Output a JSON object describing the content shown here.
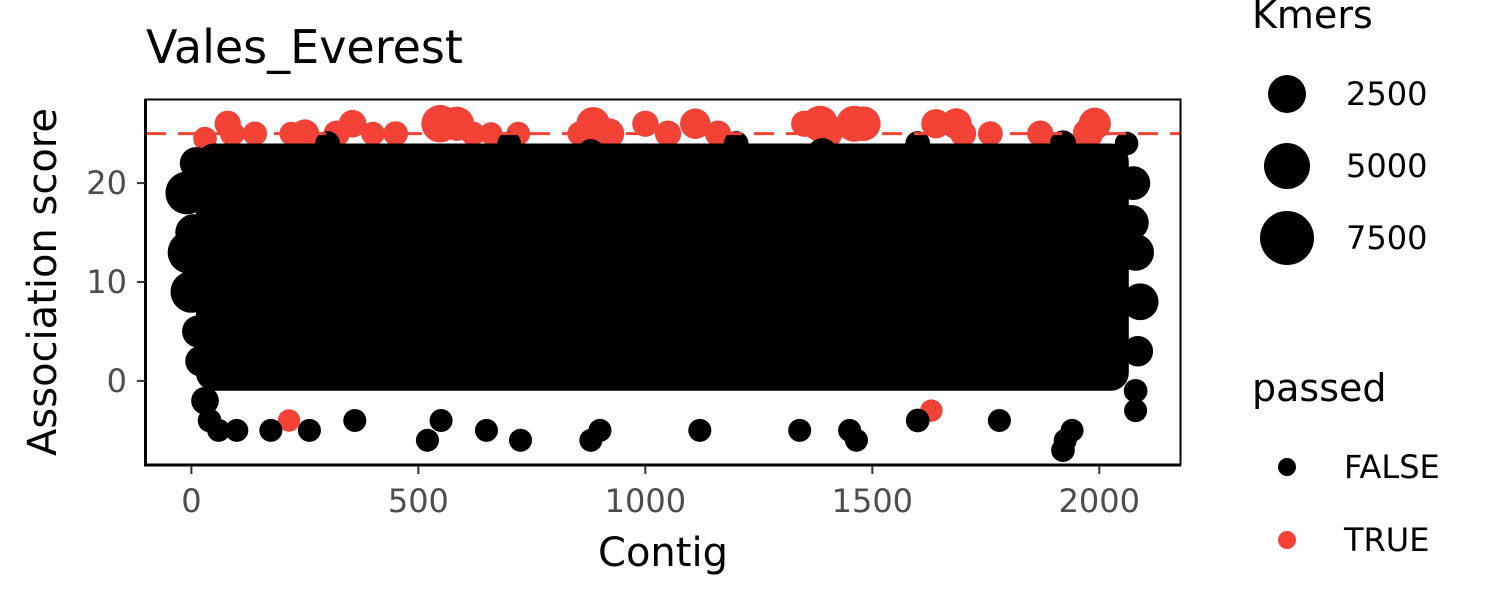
{
  "chart_data": {
    "type": "scatter",
    "title": "Vales_Everest",
    "xlabel": "Contig",
    "ylabel": "Association score",
    "xlim": [
      -100,
      2180
    ],
    "ylim": [
      -8.5,
      28.5
    ],
    "x_ticks": [
      0,
      500,
      1000,
      1500,
      2000
    ],
    "y_ticks": [
      0,
      10,
      20
    ],
    "threshold": 25,
    "threshold_color": "#F8766D",
    "colors": {
      "FALSE": "#000000",
      "TRUE": "#F44336"
    },
    "grid": false,
    "legend_position": "right",
    "legend": {
      "size": {
        "title": "Kmers",
        "entries": [
          {
            "label": "2500",
            "value": 2500
          },
          {
            "label": "5000",
            "value": 5000
          },
          {
            "label": "7500",
            "value": 7500
          }
        ]
      },
      "color": {
        "title": "passed",
        "entries": [
          {
            "label": "FALSE",
            "color": "#000000"
          },
          {
            "label": "TRUE",
            "color": "#F44336"
          }
        ]
      }
    },
    "series": [
      {
        "name": "TRUE",
        "points": [
          [
            80,
            26,
            1500
          ],
          [
            90,
            25,
            1200
          ],
          [
            30,
            24.5,
            1000
          ],
          [
            140,
            25,
            1100
          ],
          [
            220,
            25,
            1000
          ],
          [
            250,
            25,
            2000
          ],
          [
            320,
            25,
            1500
          ],
          [
            355,
            26,
            1800
          ],
          [
            400,
            25,
            1000
          ],
          [
            450,
            25,
            1200
          ],
          [
            548,
            26,
            4800
          ],
          [
            585,
            26,
            3600
          ],
          [
            620,
            25,
            1100
          ],
          [
            660,
            25,
            900
          ],
          [
            720,
            25,
            1000
          ],
          [
            855,
            25,
            1100
          ],
          [
            885,
            26,
            3400
          ],
          [
            920,
            25,
            2500
          ],
          [
            1000,
            26,
            1500
          ],
          [
            1050,
            25,
            1500
          ],
          [
            1110,
            26,
            2500
          ],
          [
            1160,
            25,
            1500
          ],
          [
            1350,
            26,
            1500
          ],
          [
            1385,
            26,
            4200
          ],
          [
            1400,
            25,
            2500
          ],
          [
            1460,
            26,
            4200
          ],
          [
            1480,
            26,
            3800
          ],
          [
            1640,
            26,
            2200
          ],
          [
            1685,
            26,
            2600
          ],
          [
            1700,
            25,
            1500
          ],
          [
            1760,
            25,
            1200
          ],
          [
            1870,
            25,
            1500
          ],
          [
            1975,
            25,
            2500
          ],
          [
            1990,
            26,
            3000
          ],
          [
            215,
            -4,
            800
          ],
          [
            1630,
            -3,
            800
          ]
        ]
      },
      {
        "name": "FALSE",
        "points": [
          [
            -10,
            19,
            7000
          ],
          [
            -5,
            13,
            7000
          ],
          [
            0,
            9,
            6500
          ],
          [
            5,
            15,
            4500
          ],
          [
            10,
            22,
            3000
          ],
          [
            15,
            5,
            3000
          ],
          [
            20,
            2,
            2500
          ],
          [
            30,
            -2,
            1800
          ],
          [
            40,
            -4,
            1000
          ],
          [
            60,
            -5,
            900
          ],
          [
            100,
            -5,
            900
          ],
          [
            175,
            -5,
            900
          ],
          [
            260,
            -5,
            900
          ],
          [
            360,
            -4,
            900
          ],
          [
            520,
            -6,
            900
          ],
          [
            550,
            -4,
            900
          ],
          [
            650,
            -5,
            900
          ],
          [
            725,
            -6,
            900
          ],
          [
            880,
            -6,
            900
          ],
          [
            900,
            -5,
            900
          ],
          [
            1120,
            -5,
            900
          ],
          [
            1340,
            -5,
            900
          ],
          [
            1450,
            -5,
            900
          ],
          [
            1465,
            -6,
            900
          ],
          [
            1600,
            -4,
            1000
          ],
          [
            1780,
            -4,
            900
          ],
          [
            1920,
            -7,
            1000
          ],
          [
            1925,
            -6,
            900
          ],
          [
            1940,
            -5,
            900
          ],
          [
            1920,
            24,
            1500
          ],
          [
            2060,
            24,
            1000
          ],
          [
            2080,
            13,
            4500
          ],
          [
            2090,
            8,
            4500
          ],
          [
            2075,
            20,
            3500
          ],
          [
            2085,
            3,
            2500
          ],
          [
            2070,
            16,
            4000
          ],
          [
            2080,
            -1,
            1000
          ],
          [
            2080,
            -3,
            900
          ],
          [
            880,
            23,
            2000
          ],
          [
            1390,
            23,
            2500
          ],
          [
            300,
            24,
            1200
          ],
          [
            700,
            24,
            1000
          ],
          [
            1200,
            24,
            1200
          ],
          [
            1600,
            24,
            1200
          ]
        ]
      }
    ]
  }
}
